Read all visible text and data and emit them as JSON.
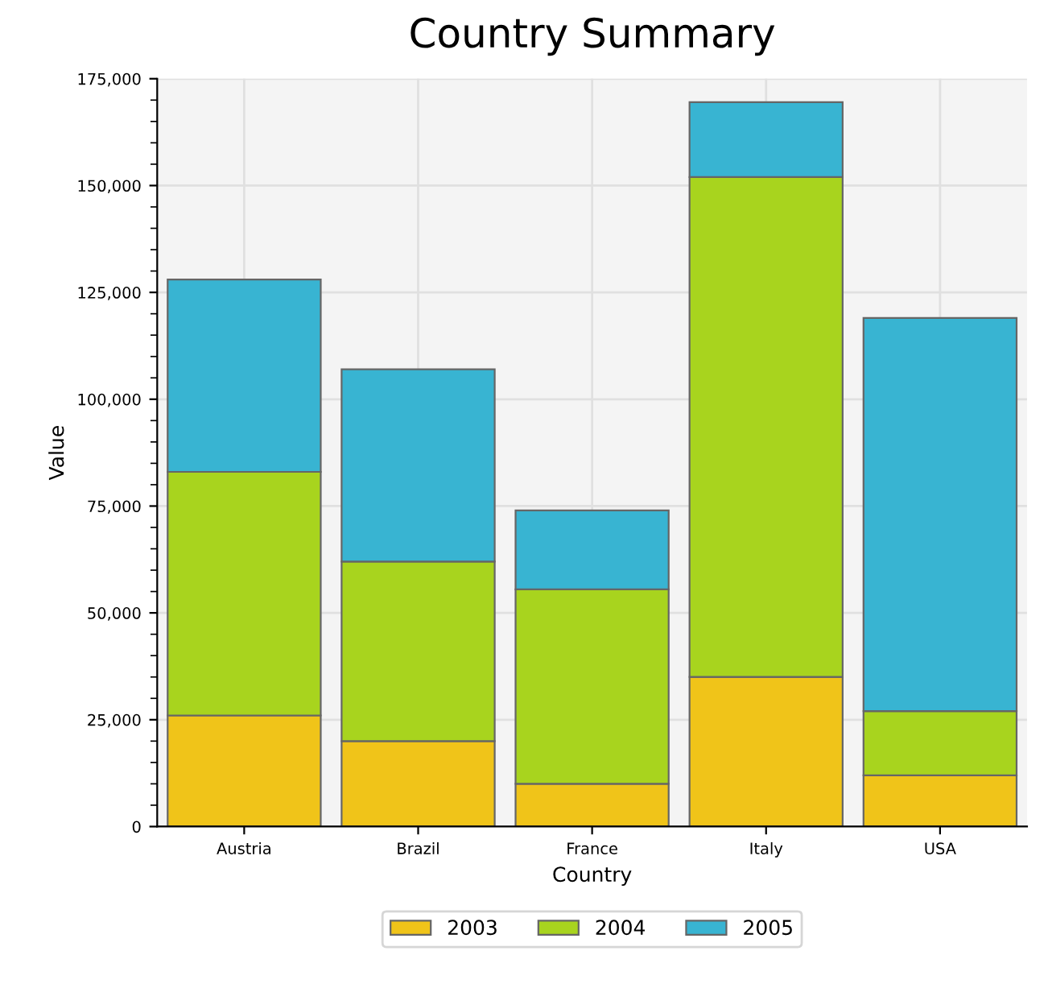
{
  "chart_data": {
    "type": "bar",
    "title": "Country Summary",
    "xlabel": "Country",
    "ylabel": "Value",
    "categories": [
      "Austria",
      "Brazil",
      "France",
      "Italy",
      "USA"
    ],
    "stacked": true,
    "series": [
      {
        "name": "2003",
        "color": "#f0c419",
        "values": [
          26000,
          20000,
          10000,
          35000,
          12000
        ]
      },
      {
        "name": "2004",
        "color": "#a8d41e",
        "values": [
          57000,
          42000,
          45500,
          117000,
          15000
        ]
      },
      {
        "name": "2005",
        "color": "#38b4d2",
        "values": [
          45000,
          45000,
          18500,
          17500,
          92000
        ]
      }
    ],
    "ylim": [
      0,
      175000
    ],
    "yticks": [
      {
        "value": 0,
        "label": "0"
      },
      {
        "value": 25000,
        "label": "25,000"
      },
      {
        "value": 50000,
        "label": "50,000"
      },
      {
        "value": 75000,
        "label": "75,000"
      },
      {
        "value": 100000,
        "label": "100,000"
      },
      {
        "value": 125000,
        "label": "125,000"
      },
      {
        "value": 150000,
        "label": "150,000"
      },
      {
        "value": 175000,
        "label": "175,000"
      }
    ],
    "grid": true,
    "legend": "bottom"
  }
}
